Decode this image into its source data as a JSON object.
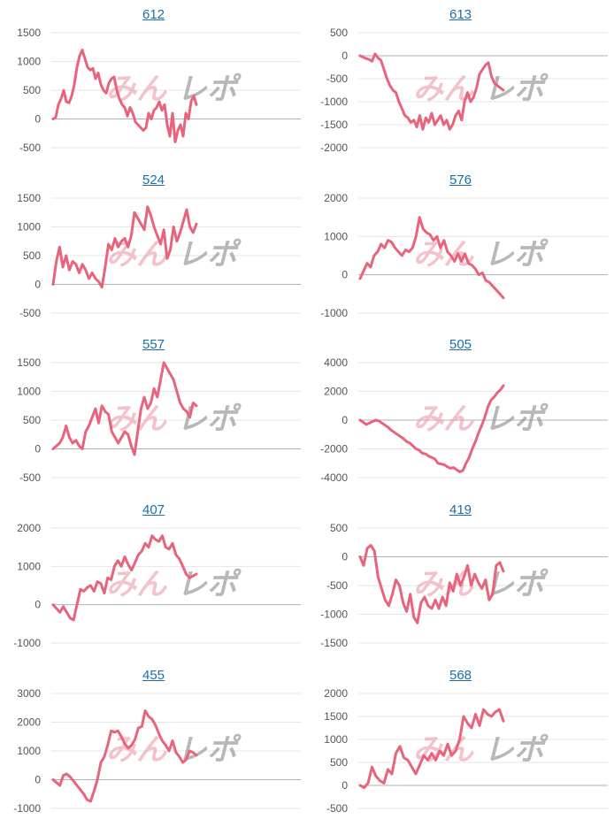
{
  "watermark": {
    "part1": "みん",
    "part2": "レポ"
  },
  "series_color": "#e8647c",
  "link_color": "#1a6fa8",
  "chart_data": [
    {
      "type": "line",
      "title": "612",
      "yticks": [
        -500,
        0,
        500,
        1000,
        1500
      ],
      "ylim": [
        -500,
        1500
      ],
      "values": [
        0,
        30,
        250,
        350,
        500,
        300,
        280,
        400,
        600,
        900,
        1100,
        1200,
        1050,
        900,
        850,
        880,
        700,
        800,
        600,
        500,
        450,
        620,
        700,
        730,
        500,
        350,
        250,
        200,
        50,
        200,
        100,
        -50,
        -100,
        -150,
        -200,
        -150,
        100,
        0,
        150,
        200,
        300,
        150,
        250,
        -100,
        -300,
        100,
        -400,
        -200,
        -100,
        -300,
        100,
        0,
        300,
        400,
        250
      ]
    },
    {
      "type": "line",
      "title": "613",
      "yticks": [
        -2000,
        -1500,
        -1000,
        -500,
        0,
        500
      ],
      "ylim": [
        -2000,
        500
      ],
      "values": [
        0,
        -30,
        -60,
        -80,
        -120,
        40,
        -50,
        -100,
        -300,
        -500,
        -650,
        -750,
        -800,
        -1000,
        -1150,
        -1300,
        -1350,
        -1450,
        -1400,
        -1550,
        -1300,
        -1600,
        -1350,
        -1450,
        -1250,
        -1500,
        -1400,
        -1300,
        -1500,
        -1400,
        -1600,
        -1500,
        -1300,
        -1200,
        -1400,
        -1000,
        -800,
        -1000,
        -900,
        -700,
        -400,
        -300,
        -200,
        -150,
        -450,
        -600,
        -650,
        -700,
        -750
      ]
    },
    {
      "type": "line",
      "title": "524",
      "yticks": [
        -500,
        0,
        500,
        1000,
        1500
      ],
      "ylim": [
        -500,
        1500
      ],
      "values": [
        0,
        400,
        650,
        300,
        500,
        250,
        400,
        350,
        200,
        350,
        250,
        100,
        200,
        100,
        50,
        -50,
        300,
        700,
        600,
        800,
        650,
        750,
        800,
        650,
        850,
        1250,
        1150,
        1050,
        950,
        1350,
        1200,
        1000,
        850,
        700,
        950,
        450,
        600,
        1000,
        750,
        900,
        1100,
        1300,
        1000,
        900,
        1050
      ]
    },
    {
      "type": "line",
      "title": "576",
      "yticks": [
        -1000,
        0,
        1000,
        2000
      ],
      "ylim": [
        -1000,
        2000
      ],
      "values": [
        -100,
        100,
        300,
        200,
        500,
        600,
        800,
        700,
        900,
        850,
        700,
        600,
        500,
        650,
        600,
        700,
        1000,
        1500,
        1200,
        1100,
        1050,
        900,
        1000,
        700,
        900,
        600,
        500,
        350,
        550,
        350,
        550,
        300,
        250,
        150,
        0,
        50,
        -150,
        -200,
        -300,
        -400,
        -500,
        -600
      ]
    },
    {
      "type": "line",
      "title": "557",
      "yticks": [
        -500,
        0,
        500,
        1000,
        1500
      ],
      "ylim": [
        -500,
        1500
      ],
      "values": [
        0,
        50,
        100,
        200,
        400,
        200,
        100,
        150,
        50,
        0,
        300,
        400,
        550,
        700,
        450,
        750,
        650,
        600,
        300,
        200,
        100,
        200,
        300,
        250,
        50,
        -100,
        300,
        700,
        900,
        700,
        800,
        1050,
        900,
        1200,
        1500,
        1400,
        1300,
        1200,
        1000,
        800,
        700,
        650,
        550,
        800,
        750
      ]
    },
    {
      "type": "line",
      "title": "505",
      "yticks": [
        -4000,
        -2000,
        0,
        2000,
        4000
      ],
      "ylim": [
        -4000,
        4000
      ],
      "values": [
        0,
        -150,
        -300,
        -200,
        -100,
        0,
        -50,
        -200,
        -350,
        -500,
        -700,
        -850,
        -1000,
        -1150,
        -1300,
        -1500,
        -1600,
        -1800,
        -2000,
        -2100,
        -2300,
        -2350,
        -2500,
        -2600,
        -2700,
        -3000,
        -3050,
        -3100,
        -3250,
        -3350,
        -3300,
        -3450,
        -3600,
        -3500,
        -3000,
        -2600,
        -2000,
        -1500,
        -900,
        -400,
        200,
        900,
        1400,
        1600,
        1900,
        2100,
        2400
      ]
    },
    {
      "type": "line",
      "title": "407",
      "yticks": [
        -1000,
        0,
        1000,
        2000
      ],
      "ylim": [
        -1000,
        2000
      ],
      "values": [
        0,
        -100,
        -200,
        -50,
        -200,
        -350,
        -400,
        0,
        400,
        350,
        450,
        500,
        350,
        600,
        550,
        300,
        700,
        650,
        1000,
        1150,
        1000,
        1250,
        1050,
        900,
        1100,
        1300,
        1400,
        1600,
        1500,
        1800,
        1700,
        1650,
        1800,
        1500,
        1450,
        1600,
        1300,
        1200,
        1000,
        800,
        700,
        750,
        800
      ]
    },
    {
      "type": "line",
      "title": "419",
      "yticks": [
        -1500,
        -1000,
        -500,
        0,
        500
      ],
      "ylim": [
        -1500,
        500
      ],
      "values": [
        0,
        -150,
        150,
        200,
        100,
        -350,
        -550,
        -750,
        -850,
        -650,
        -400,
        -500,
        -800,
        -950,
        -650,
        -1050,
        -1150,
        -800,
        -700,
        -850,
        -900,
        -750,
        -900,
        -700,
        -850,
        -450,
        -600,
        -300,
        -500,
        -350,
        -150,
        -500,
        -300,
        -450,
        -550,
        -400,
        -750,
        -650,
        -150,
        -100,
        -250
      ]
    },
    {
      "type": "line",
      "title": "455",
      "yticks": [
        -1000,
        0,
        1000,
        2000,
        3000
      ],
      "ylim": [
        -1000,
        3000
      ],
      "values": [
        0,
        -100,
        -200,
        150,
        200,
        100,
        -50,
        -200,
        -350,
        -500,
        -700,
        -750,
        -400,
        0,
        600,
        800,
        1200,
        1700,
        1650,
        1700,
        1500,
        1250,
        1100,
        1200,
        1400,
        1800,
        1850,
        2400,
        2200,
        2100,
        1900,
        1600,
        1350,
        1200,
        1000,
        1350,
        950,
        800,
        600,
        700,
        1000,
        950,
        850
      ]
    },
    {
      "type": "line",
      "title": "568",
      "yticks": [
        -500,
        0,
        500,
        1000,
        1500,
        2000
      ],
      "ylim": [
        -500,
        2000
      ],
      "values": [
        0,
        -50,
        50,
        400,
        200,
        100,
        50,
        350,
        250,
        700,
        850,
        600,
        550,
        400,
        250,
        450,
        650,
        550,
        700,
        550,
        750,
        650,
        900,
        650,
        750,
        1000,
        1500,
        1350,
        1250,
        1550,
        1300,
        1650,
        1550,
        1500,
        1600,
        1650,
        1400
      ]
    }
  ]
}
